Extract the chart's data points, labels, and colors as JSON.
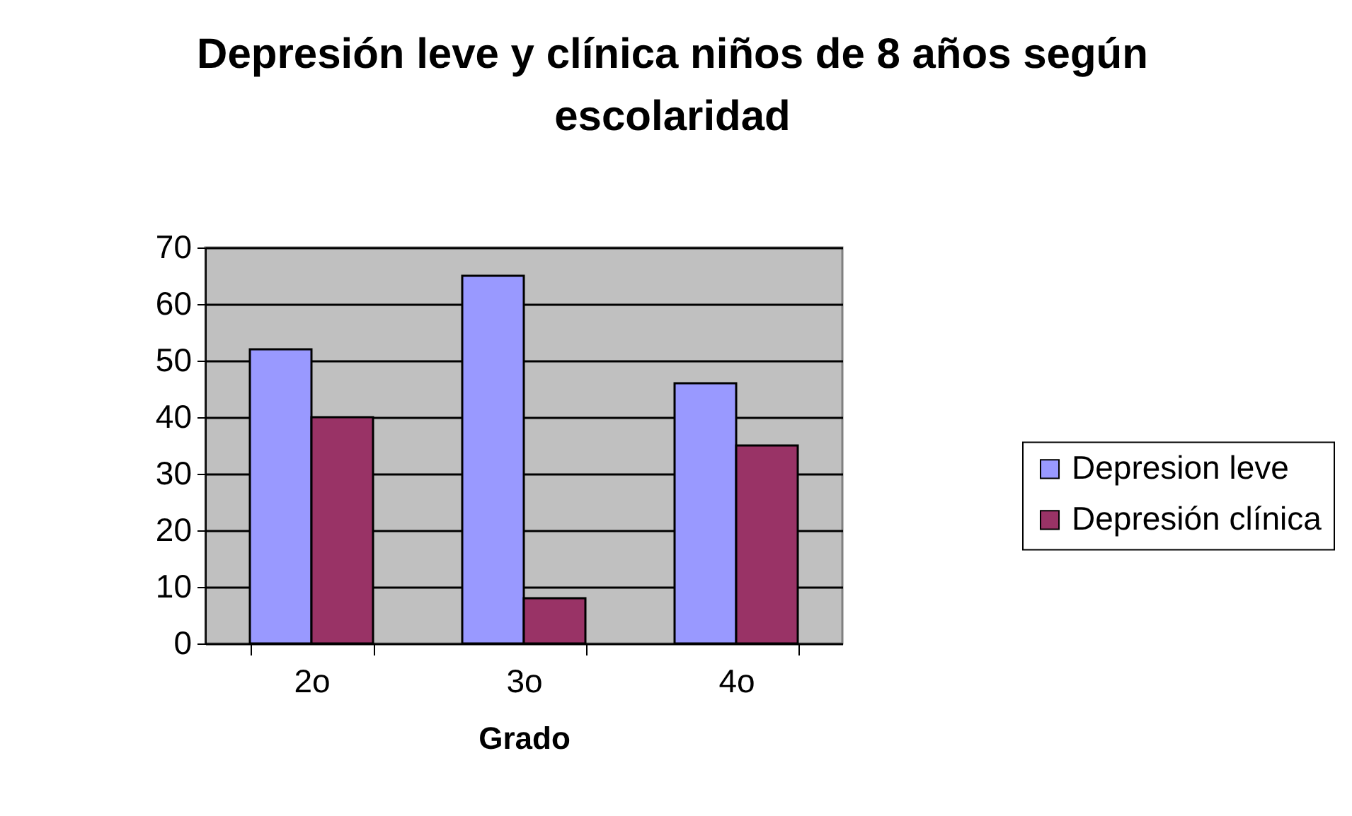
{
  "chart_data": {
    "type": "bar",
    "title": "Depresión leve y clínica niños de 8 años según escolaridad",
    "xlabel": "Grado",
    "categories": [
      "2o",
      "3o",
      "4o"
    ],
    "series": [
      {
        "name": "Depresion leve",
        "color": "#9999ff",
        "values": [
          52,
          65,
          46
        ]
      },
      {
        "name": "Depresión clínica",
        "color": "#993366",
        "values": [
          40,
          8,
          35
        ]
      }
    ],
    "ylim": [
      0,
      70
    ],
    "yticks": [
      0,
      10,
      20,
      30,
      40,
      50,
      60,
      70
    ],
    "grid": "y",
    "legend": "right"
  }
}
